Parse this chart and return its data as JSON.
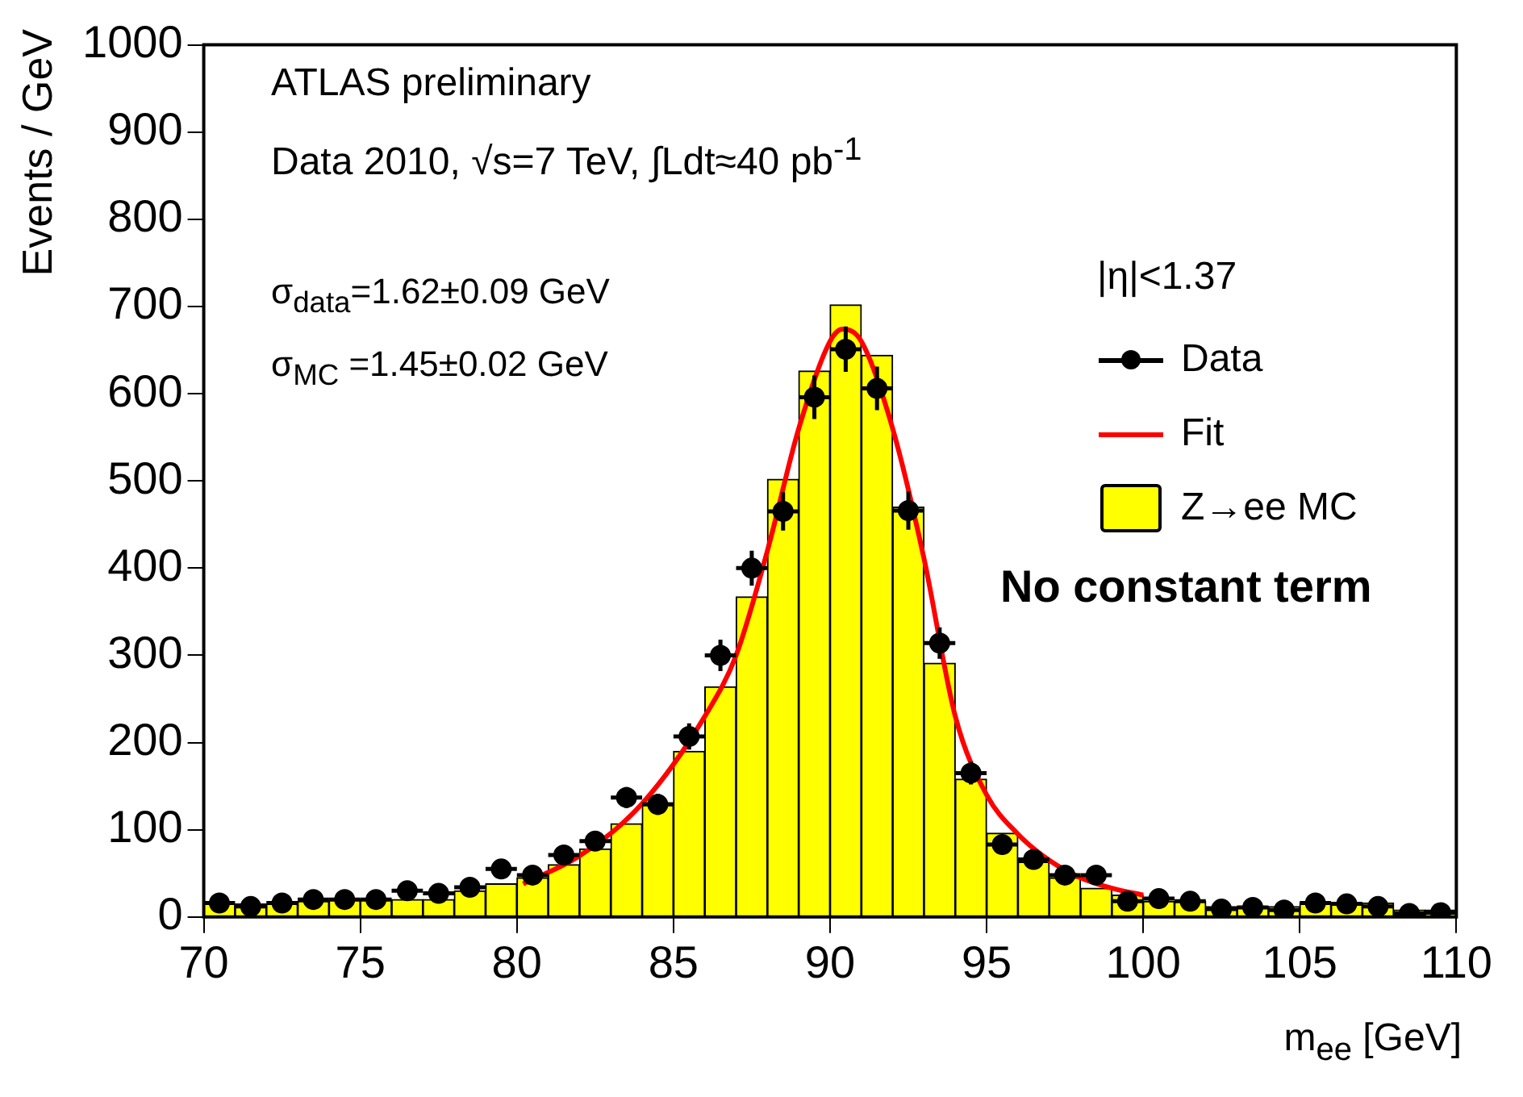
{
  "chart_data": {
    "type": "histogram",
    "xlabel": "m$_{ee}$ [GeV]",
    "ylabel": "Events / GeV",
    "legend_title": "|η|<1.37",
    "annotations": [
      "ATLAS  preliminary",
      "Data 2010,  √s=7 TeV,  ∫Ldt≈40 pb$^{-1}$",
      "σ$_{data}$=1.62±0.09 GeV",
      "σ$_{MC}$ =1.45±0.02 GeV",
      "No constant term"
    ],
    "bins": [
      70,
      71,
      72,
      73,
      74,
      75,
      76,
      77,
      78,
      79,
      80,
      81,
      82,
      83,
      84,
      85,
      86,
      87,
      88,
      89,
      90,
      91,
      92,
      93,
      94,
      95,
      96,
      97,
      98,
      99,
      100,
      101,
      102,
      103,
      104,
      105,
      106,
      107,
      108,
      109,
      110
    ],
    "series": [
      {
        "name": "Data",
        "type": "scatter",
        "marker": "circle",
        "color": "#000000",
        "x": [
          70.5,
          71.5,
          72.5,
          73.5,
          74.5,
          75.5,
          76.5,
          77.5,
          78.5,
          79.5,
          80.5,
          81.5,
          82.5,
          83.5,
          84.5,
          85.5,
          86.5,
          87.5,
          88.5,
          89.5,
          90.5,
          91.5,
          92.5,
          93.5,
          94.5,
          95.5,
          96.5,
          97.5,
          98.5,
          99.5,
          100.5,
          101.5,
          102.5,
          103.5,
          104.5,
          105.5,
          106.5,
          107.5,
          108.5,
          109.5
        ],
        "values": [
          16,
          12,
          16,
          20,
          20,
          20,
          30,
          27,
          34,
          55,
          48,
          71,
          87,
          137,
          129,
          207,
          300,
          400,
          465,
          596,
          651,
          606,
          466,
          314,
          165,
          83,
          66,
          48,
          48,
          18,
          21,
          18,
          9,
          11,
          8,
          16,
          15,
          12,
          4,
          5
        ],
        "errors": [
          4,
          4,
          4,
          5,
          5,
          5,
          6,
          5,
          6,
          8,
          7,
          9,
          10,
          12,
          12,
          15,
          18,
          20,
          22,
          25,
          26,
          25,
          22,
          18,
          13,
          9,
          8,
          7,
          7,
          4,
          5,
          4,
          3,
          3,
          3,
          4,
          4,
          4,
          null,
          null
        ],
        "xerrors": [
          0.5,
          0.5,
          0.5,
          0.5,
          0.5,
          0.5,
          0.5,
          0.5,
          0.5,
          0.5,
          0.5,
          0.5,
          0.5,
          0.5,
          0.5,
          0.5,
          0.5,
          0.5,
          0.5,
          0.5,
          0.5,
          0.5,
          0.5,
          0.5,
          0.5,
          0.5,
          0.5,
          0.5,
          0.5,
          0.5,
          0.5,
          0.5,
          0.5,
          0.5,
          0.5,
          0.5,
          0.5,
          0.5,
          0.5,
          0.5
        ]
      },
      {
        "name": "Fit",
        "type": "line",
        "color": "#ff0000",
        "x": [
          80.2,
          82,
          84,
          86,
          87,
          88,
          89,
          90,
          90.4,
          91,
          92,
          93,
          94,
          95,
          96,
          97,
          98,
          99,
          100
        ],
        "values": [
          38,
          70,
          130,
          230,
          300,
          420,
          560,
          660,
          674,
          660,
          560,
          411,
          230,
          140,
          95,
          65,
          45,
          33,
          25
        ]
      },
      {
        "name": "Z→ee MC",
        "type": "histogram",
        "color": "#ffff00",
        "values": [
          15,
          15,
          15,
          18,
          20,
          20,
          20,
          20,
          30,
          38,
          45,
          60,
          78,
          107,
          131,
          190,
          264,
          367,
          502,
          626,
          702,
          644,
          470,
          291,
          158,
          96,
          63,
          45,
          33,
          25,
          18,
          18,
          12,
          12,
          12,
          16,
          16,
          16,
          8,
          8
        ]
      }
    ],
    "xlim": [
      70,
      110
    ],
    "xticks": [
      70,
      75,
      80,
      85,
      90,
      95,
      100,
      105,
      110
    ],
    "ylim": [
      0,
      1000
    ],
    "yticks": [
      0,
      100,
      200,
      300,
      400,
      500,
      600,
      700,
      800,
      900,
      1000
    ],
    "grid": false,
    "legend": "top right"
  }
}
